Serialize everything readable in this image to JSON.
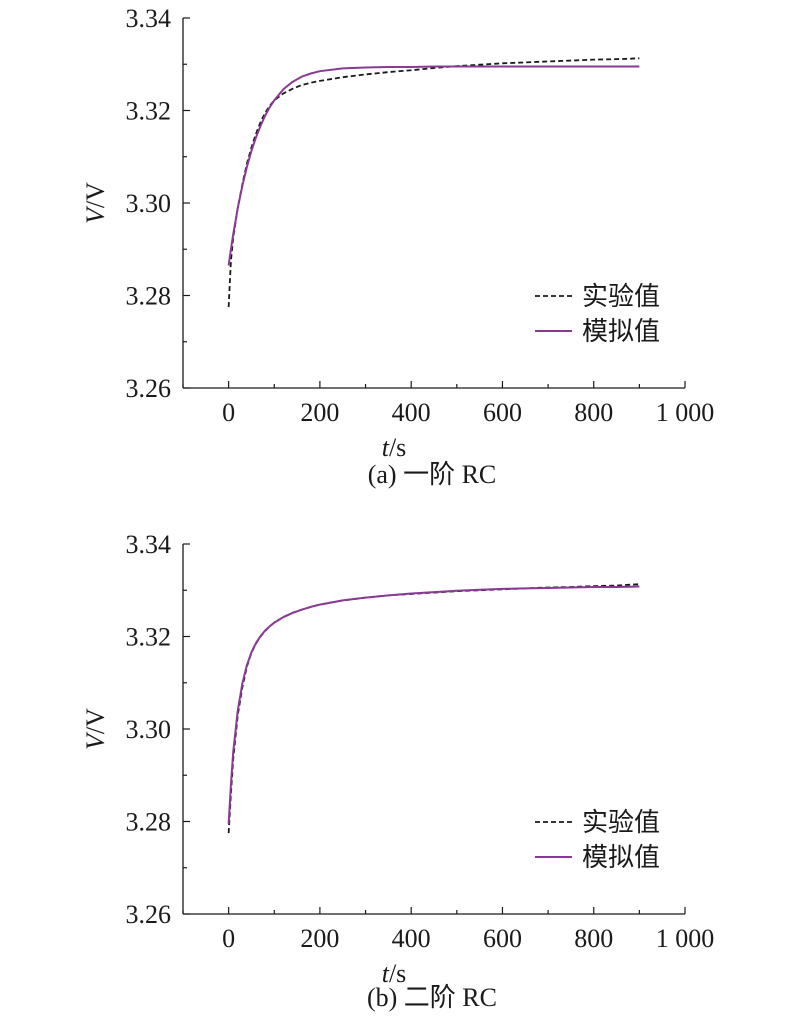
{
  "chart_data": [
    {
      "type": "line",
      "caption": "(a) 一阶 RC",
      "xlabel_italic": "t",
      "xlabel_unit": "/s",
      "ylabel_italic": "V",
      "ylabel_unit": "/V",
      "xlim": [
        -100,
        1000
      ],
      "ylim": [
        3.26,
        3.34
      ],
      "x_ticks": [
        0,
        200,
        400,
        600,
        800,
        1000
      ],
      "x_tick_labels": [
        "0",
        "200",
        "400",
        "600",
        "800",
        "1 000"
      ],
      "y_ticks": [
        3.26,
        3.28,
        3.3,
        3.32,
        3.34
      ],
      "y_tick_labels": [
        "3.26",
        "3.28",
        "3.30",
        "3.32",
        "3.34"
      ],
      "legend_position": "lower-right",
      "series": [
        {
          "name": "实验值",
          "color": "#1a1a1a",
          "style": "dashed",
          "x": [
            0,
            5,
            10,
            20,
            30,
            40,
            50,
            60,
            70,
            80,
            90,
            100,
            120,
            140,
            160,
            180,
            200,
            250,
            300,
            350,
            400,
            450,
            500,
            550,
            600,
            650,
            700,
            750,
            800,
            850,
            880,
            900
          ],
          "y": [
            3.2775,
            3.2875,
            3.2925,
            3.299,
            3.304,
            3.3085,
            3.312,
            3.315,
            3.3175,
            3.3195,
            3.321,
            3.3222,
            3.3237,
            3.3247,
            3.3255,
            3.326,
            3.3264,
            3.3272,
            3.3278,
            3.3283,
            3.3287,
            3.3292,
            3.3296,
            3.3299,
            3.3302,
            3.3304,
            3.3306,
            3.3308,
            3.331,
            3.3311,
            3.3312,
            3.3313
          ]
        },
        {
          "name": "模拟值",
          "color": "#8a3a93",
          "style": "solid",
          "x": [
            0,
            5,
            10,
            20,
            30,
            40,
            50,
            60,
            70,
            80,
            90,
            100,
            120,
            140,
            160,
            180,
            200,
            250,
            300,
            350,
            400,
            450,
            500,
            550,
            600,
            650,
            700,
            750,
            800,
            850,
            900
          ],
          "y": [
            3.2865,
            3.29,
            3.2932,
            3.2989,
            3.3037,
            3.3078,
            3.3113,
            3.3142,
            3.3167,
            3.3189,
            3.3207,
            3.3222,
            3.3246,
            3.3262,
            3.3273,
            3.328,
            3.3285,
            3.3291,
            3.3293,
            3.3294,
            3.3294,
            3.3295,
            3.3295,
            3.3295,
            3.3295,
            3.3295,
            3.3295,
            3.3295,
            3.3295,
            3.3295,
            3.3295
          ]
        }
      ]
    },
    {
      "type": "line",
      "caption": "(b) 二阶 RC",
      "xlabel_italic": "t",
      "xlabel_unit": "/s",
      "ylabel_italic": "V",
      "ylabel_unit": "/V",
      "xlim": [
        -100,
        1000
      ],
      "ylim": [
        3.26,
        3.34
      ],
      "x_ticks": [
        0,
        200,
        400,
        600,
        800,
        1000
      ],
      "x_tick_labels": [
        "0",
        "200",
        "400",
        "600",
        "800",
        "1 000"
      ],
      "y_ticks": [
        3.26,
        3.28,
        3.3,
        3.32,
        3.34
      ],
      "y_tick_labels": [
        "3.26",
        "3.28",
        "3.30",
        "3.32",
        "3.34"
      ],
      "legend_position": "lower-right",
      "series": [
        {
          "name": "实验值",
          "color": "#1a1a1a",
          "style": "dashed",
          "x": [
            0,
            5,
            10,
            20,
            30,
            40,
            50,
            60,
            70,
            80,
            90,
            100,
            120,
            140,
            160,
            180,
            200,
            250,
            300,
            350,
            400,
            450,
            500,
            550,
            600,
            650,
            700,
            750,
            800,
            850,
            880,
            900
          ],
          "y": [
            3.2775,
            3.286,
            3.2935,
            3.303,
            3.309,
            3.3135,
            3.3165,
            3.3185,
            3.32,
            3.3212,
            3.3222,
            3.323,
            3.3242,
            3.3251,
            3.3258,
            3.3264,
            3.3269,
            3.3278,
            3.3284,
            3.3289,
            3.3292,
            3.3295,
            3.3298,
            3.33,
            3.3302,
            3.3304,
            3.3306,
            3.3307,
            3.3309,
            3.331,
            3.3312,
            3.3313
          ]
        },
        {
          "name": "模拟值",
          "color": "#8a3a93",
          "style": "solid",
          "x": [
            0,
            5,
            10,
            20,
            30,
            40,
            50,
            60,
            70,
            80,
            90,
            100,
            120,
            140,
            160,
            180,
            200,
            250,
            300,
            350,
            400,
            450,
            500,
            550,
            600,
            650,
            700,
            750,
            800,
            850,
            900
          ],
          "y": [
            3.2795,
            3.288,
            3.295,
            3.304,
            3.3098,
            3.3138,
            3.3166,
            3.3186,
            3.3201,
            3.3213,
            3.3222,
            3.323,
            3.3242,
            3.3251,
            3.3258,
            3.3264,
            3.3269,
            3.3278,
            3.3284,
            3.3289,
            3.3293,
            3.3296,
            3.3299,
            3.3301,
            3.3303,
            3.3304,
            3.3305,
            3.3306,
            3.3307,
            3.3307,
            3.3308
          ]
        }
      ]
    }
  ]
}
